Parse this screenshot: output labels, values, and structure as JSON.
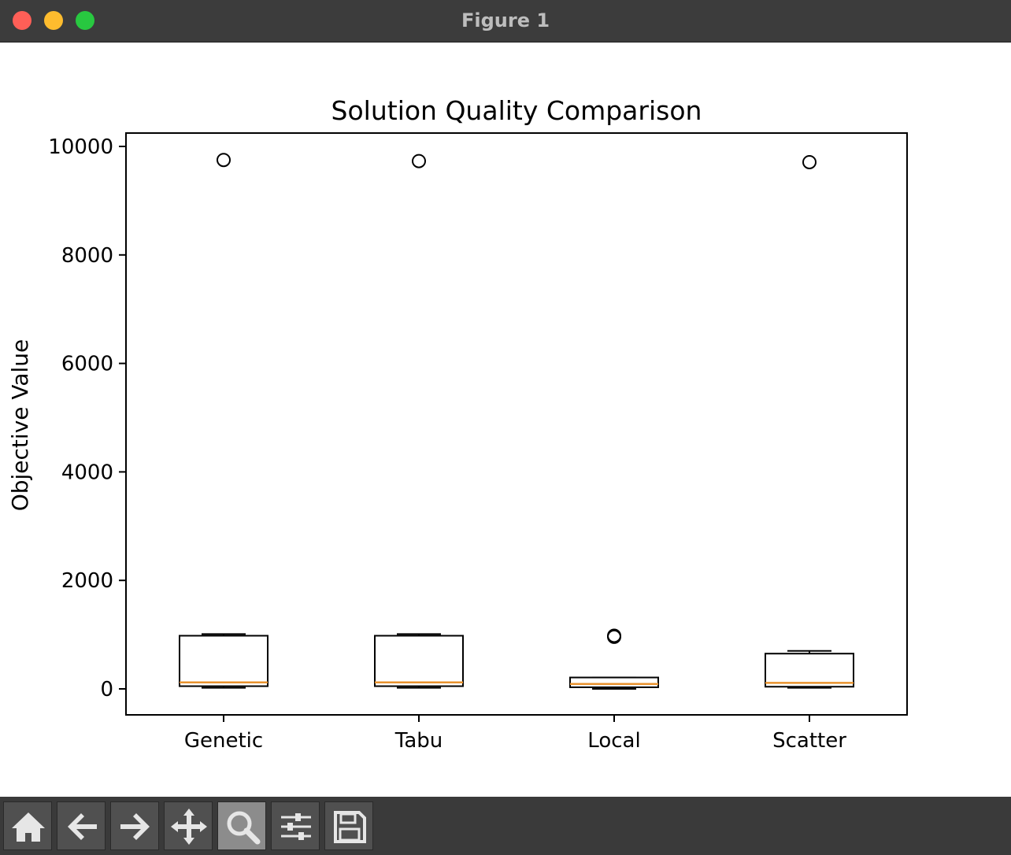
{
  "window": {
    "title": "Figure 1"
  },
  "toolbar": {
    "buttons": [
      {
        "icon": "home-icon",
        "name": "home-button",
        "active": false
      },
      {
        "icon": "back-arrow-icon",
        "name": "back-button",
        "active": false
      },
      {
        "icon": "forward-arrow-icon",
        "name": "forward-button",
        "active": false
      },
      {
        "icon": "pan-icon",
        "name": "pan-button",
        "active": false
      },
      {
        "icon": "zoom-icon",
        "name": "zoom-button",
        "active": true
      },
      {
        "icon": "configure-subplots-icon",
        "name": "configure-subplots-button",
        "active": false
      },
      {
        "icon": "save-icon",
        "name": "save-button",
        "active": false
      }
    ]
  },
  "chart_data": {
    "type": "box",
    "title": "Solution Quality Comparison",
    "xlabel": "",
    "ylabel": "Objective Value",
    "ylim": [
      -470,
      10250
    ],
    "yticks": [
      0,
      2000,
      4000,
      6000,
      8000,
      10000
    ],
    "categories": [
      "Genetic",
      "Tabu",
      "Local",
      "Scatter"
    ],
    "boxes": [
      {
        "name": "Genetic",
        "whislo": 20,
        "q1": 50,
        "med": 120,
        "q3": 980,
        "whishi": 1010,
        "fliers": [
          9750
        ]
      },
      {
        "name": "Tabu",
        "whislo": 20,
        "q1": 50,
        "med": 120,
        "q3": 980,
        "whishi": 1010,
        "fliers": [
          9730
        ]
      },
      {
        "name": "Local",
        "whislo": 0,
        "q1": 30,
        "med": 90,
        "q3": 210,
        "whishi": 210,
        "fliers": [
          960,
          980
        ]
      },
      {
        "name": "Scatter",
        "whislo": 20,
        "q1": 40,
        "med": 110,
        "q3": 650,
        "whishi": 700,
        "fliers": [
          9710
        ]
      }
    ],
    "colors": {
      "box": "#000000",
      "median": "#e8922e",
      "flier": "#000000"
    },
    "grid": false
  }
}
